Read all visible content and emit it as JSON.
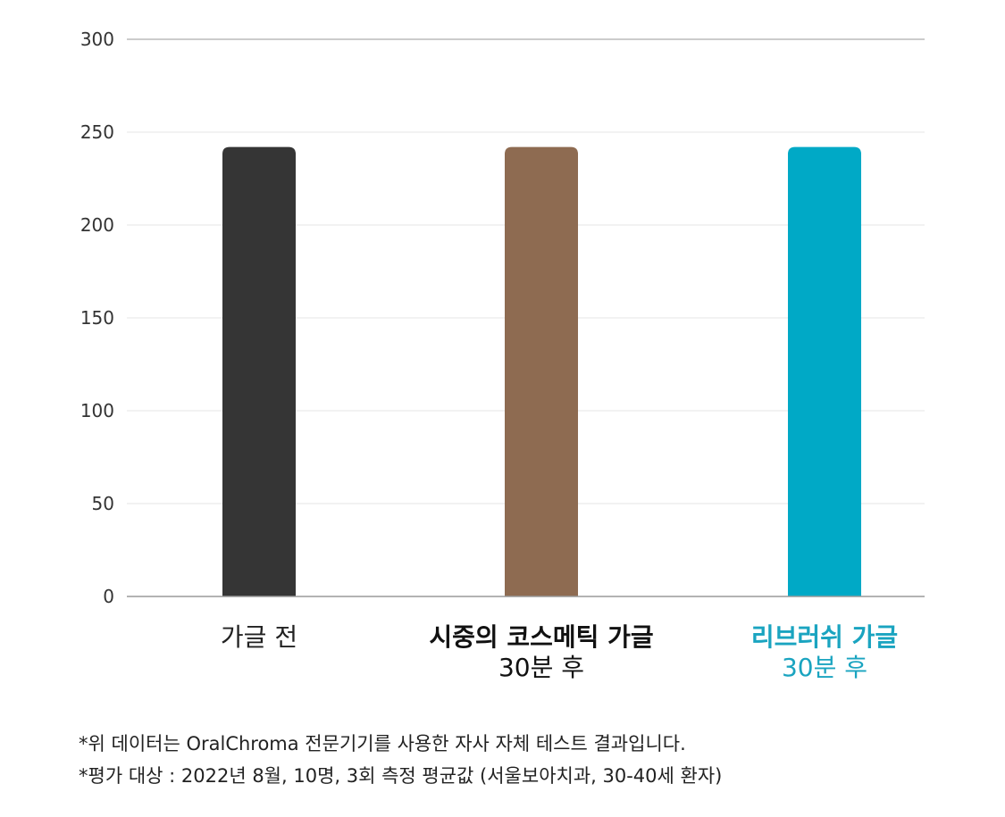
{
  "chart_data": {
    "type": "bar",
    "categories": [
      {
        "line1": "가글 전",
        "line2": ""
      },
      {
        "line1": "시중의 코스메틱 가글",
        "line2": "30분 후"
      },
      {
        "line1": "리브러쉬 가글",
        "line2": "30분 후"
      }
    ],
    "values": [
      242,
      242,
      242
    ],
    "colors": [
      "#353535",
      "#8e6b51",
      "#00a9c6"
    ],
    "label_colors": [
      "#222222",
      "#111111",
      "#1aa4c0"
    ],
    "label_bold": [
      false,
      true,
      true
    ],
    "ylim": [
      0,
      300
    ],
    "yticks": [
      "0",
      "50",
      "100",
      "150",
      "200",
      "250",
      "300"
    ],
    "grid": true,
    "title": "",
    "xlabel": "",
    "ylabel": ""
  },
  "notes": [
    "*위 데이터는 OralChroma 전문기기를 사용한 자사 자체 테스트 결과입니다.",
    "*평가 대상 : 2022년 8월, 10명, 3회 측정 평균값 (서울보아치과, 30-40세 환자)"
  ]
}
